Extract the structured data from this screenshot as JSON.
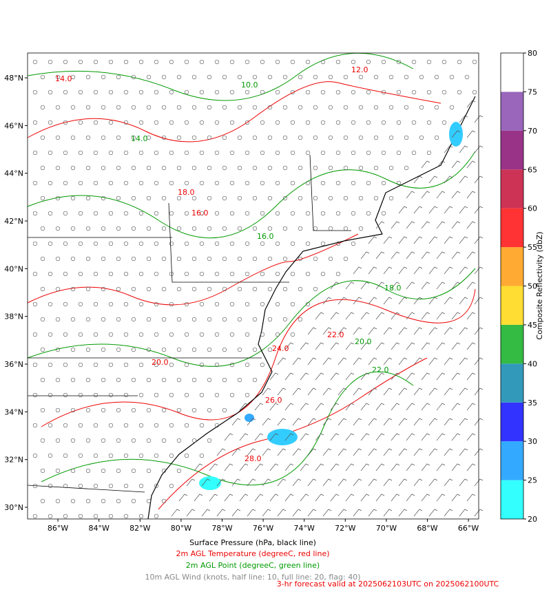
{
  "map": {
    "xlim": [
      -87.48,
      -65.5
    ],
    "ylim": [
      29.51,
      49.04
    ],
    "xticks": [
      {
        "value": -86,
        "label": "86°W"
      },
      {
        "value": -84,
        "label": "84°W"
      },
      {
        "value": -82,
        "label": "82°W"
      },
      {
        "value": -80,
        "label": "80°W"
      },
      {
        "value": -78,
        "label": "78°W"
      },
      {
        "value": -76,
        "label": "76°W"
      },
      {
        "value": -74,
        "label": "74°W"
      },
      {
        "value": -72,
        "label": "72°W"
      },
      {
        "value": -70,
        "label": "70°W"
      },
      {
        "value": -68,
        "label": "68°W"
      },
      {
        "value": -66,
        "label": "66°W"
      }
    ],
    "yticks": [
      {
        "value": 30,
        "label": "30°N"
      },
      {
        "value": 32,
        "label": "32°N"
      },
      {
        "value": 34,
        "label": "34°N"
      },
      {
        "value": 36,
        "label": "36°N"
      },
      {
        "value": 38,
        "label": "38°N"
      },
      {
        "value": 40,
        "label": "40°N"
      },
      {
        "value": 42,
        "label": "42°N"
      },
      {
        "value": 44,
        "label": "44°N"
      },
      {
        "value": 46,
        "label": "46°N"
      },
      {
        "value": 48,
        "label": "48°N"
      }
    ],
    "temperature_labels": [
      "12.0",
      "14.0",
      "16.0",
      "18.0",
      "20.0",
      "22.0",
      "24.0",
      "26.0",
      "28.0"
    ],
    "dewpoint_labels": [
      "10.0",
      "14.0",
      "16.0",
      "18.0",
      "20.0",
      "22.0"
    ]
  },
  "colorbar": {
    "label": "Composite Reflectivity (dbZ)",
    "lim": [
      20,
      80
    ],
    "ticks": [
      20,
      25,
      30,
      35,
      40,
      45,
      50,
      55,
      60,
      65,
      70,
      75,
      80
    ],
    "colors": [
      "#33ffff",
      "#33aaff",
      "#3333ff",
      "#3399bb",
      "#33bb44",
      "#ffdd33",
      "#ffaa33",
      "#ff3333",
      "#cc3355",
      "#993388",
      "#9966bb",
      "#ffffff"
    ]
  },
  "captions": {
    "pressure": "Surface Pressure (hPa, black line)",
    "temperature": "2m AGL Temperature (degreeC, red line)",
    "dewpoint": "2m AGL Point (degreeC, green line)",
    "wind": "10m AGL Wind (knots, half line: 10, full line: 20, flag: 40)",
    "valid": "3-hr forecast valid at 2025062103UTC on 2025062100UTC"
  }
}
